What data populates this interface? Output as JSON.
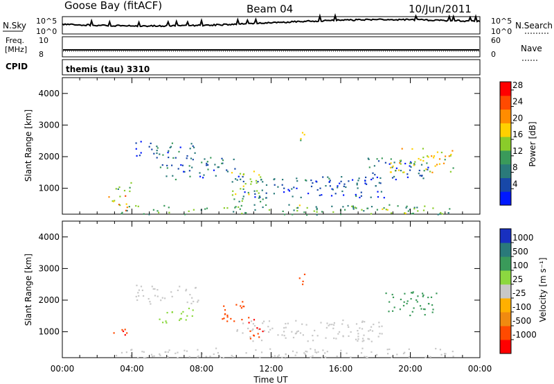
{
  "header": {
    "station": "Goose Bay (fitACF)",
    "beam": "Beam 04",
    "date": "10/Jun/2011"
  },
  "top_panels": {
    "nsky_label": "N.Sky",
    "nsky_ticks": [
      "10^5",
      "10^0"
    ],
    "nsearch_label": "N.Search",
    "nsearch_ticks": [
      "10^5",
      "10^0"
    ],
    "freq_label_1": "Freq.",
    "freq_label_2": "[MHz]",
    "freq_ticks": [
      "10",
      "8"
    ],
    "nave_label": "Nave",
    "nave_ticks": [
      "60",
      "0"
    ],
    "cpid_label": "CPID",
    "cpid_value": "themis (tau) 3310"
  },
  "colors": {
    "power_scale": [
      "#0018ff",
      "#1848a8",
      "#2a7a7a",
      "#3a9a5a",
      "#8acc2a",
      "#ffd000",
      "#ff8c00",
      "#ff4a00",
      "#ff0000"
    ],
    "velocity_scale": [
      "#ff0000",
      "#ff4a00",
      "#f08a10",
      "#ffb000",
      "#c8c8c8",
      "#8cd840",
      "#3a9a5a",
      "#2a7a7a",
      "#1830c0"
    ]
  },
  "chart_data": [
    {
      "type": "heatmap",
      "name": "power",
      "ylabel": "Slant Range [km]",
      "ylim": [
        180,
        4500
      ],
      "y_ticks": [
        "1000",
        "2000",
        "3000",
        "4000"
      ],
      "xlim": [
        0,
        24
      ],
      "colorbar": {
        "label": "Power [dB]",
        "ticks": [
          "4",
          "8",
          "12",
          "16",
          "20",
          "24",
          "28"
        ],
        "range": [
          0,
          30
        ]
      },
      "echo_regions": [
        {
          "t": [
            4.2,
            7.8
          ],
          "r": [
            1900,
            2500
          ],
          "v": 6
        },
        {
          "t": [
            5.5,
            7.5
          ],
          "r": [
            1300,
            1800
          ],
          "v": 8
        },
        {
          "t": [
            7.8,
            10.0
          ],
          "r": [
            1300,
            2000
          ],
          "v": 7
        },
        {
          "t": [
            9.5,
            11.5
          ],
          "r": [
            600,
            1600
          ],
          "v": 14
        },
        {
          "t": [
            13.3,
            13.9
          ],
          "r": [
            2500,
            2900
          ],
          "v": 16
        },
        {
          "t": [
            10.0,
            18.5
          ],
          "r": [
            700,
            1400
          ],
          "v": 6
        },
        {
          "t": [
            17.5,
            21.0
          ],
          "r": [
            1300,
            2000
          ],
          "v": 6
        },
        {
          "t": [
            18.8,
            22.5
          ],
          "r": [
            1500,
            2300
          ],
          "v": 18
        },
        {
          "t": [
            2.6,
            3.8
          ],
          "r": [
            300,
            800
          ],
          "v": 20
        },
        {
          "t": [
            3.0,
            4.0
          ],
          "r": [
            900,
            1300
          ],
          "v": 14
        },
        {
          "t": [
            3.0,
            22.5
          ],
          "r": [
            180,
            500
          ],
          "v": 12
        }
      ]
    },
    {
      "type": "heatmap",
      "name": "velocity",
      "ylabel": "Slant Range [km]",
      "xlabel": "Time UT",
      "ylim": [
        180,
        4500
      ],
      "y_ticks": [
        "1000",
        "2000",
        "3000",
        "4000"
      ],
      "x_ticks": [
        "00:00",
        "04:00",
        "08:00",
        "12:00",
        "16:00",
        "20:00",
        "00:00"
      ],
      "xlim": [
        0,
        24
      ],
      "colorbar": {
        "label": "Velocity [m s⁻¹]",
        "ticks": [
          "1000",
          "500",
          "100",
          "25",
          "-25",
          "-100",
          "-500",
          "-1000"
        ]
      },
      "echo_regions": [
        {
          "t": [
            4.2,
            7.8
          ],
          "r": [
            1900,
            2500
          ],
          "v": 0
        },
        {
          "t": [
            5.5,
            7.5
          ],
          "r": [
            1300,
            1800
          ],
          "v": 50
        },
        {
          "t": [
            9.0,
            10.5
          ],
          "r": [
            1300,
            2000
          ],
          "v": -300
        },
        {
          "t": [
            10.5,
            11.5
          ],
          "r": [
            800,
            1500
          ],
          "v": -400
        },
        {
          "t": [
            13.3,
            13.9
          ],
          "r": [
            2500,
            2900
          ],
          "v": -300
        },
        {
          "t": [
            10.0,
            18.5
          ],
          "r": [
            700,
            1400
          ],
          "v": 0
        },
        {
          "t": [
            18.5,
            21.5
          ],
          "r": [
            1500,
            2300
          ],
          "v": 200
        },
        {
          "t": [
            2.6,
            3.8
          ],
          "r": [
            900,
            1200
          ],
          "v": -400
        },
        {
          "t": [
            3.0,
            22.5
          ],
          "r": [
            180,
            500
          ],
          "v": 10
        }
      ]
    }
  ]
}
